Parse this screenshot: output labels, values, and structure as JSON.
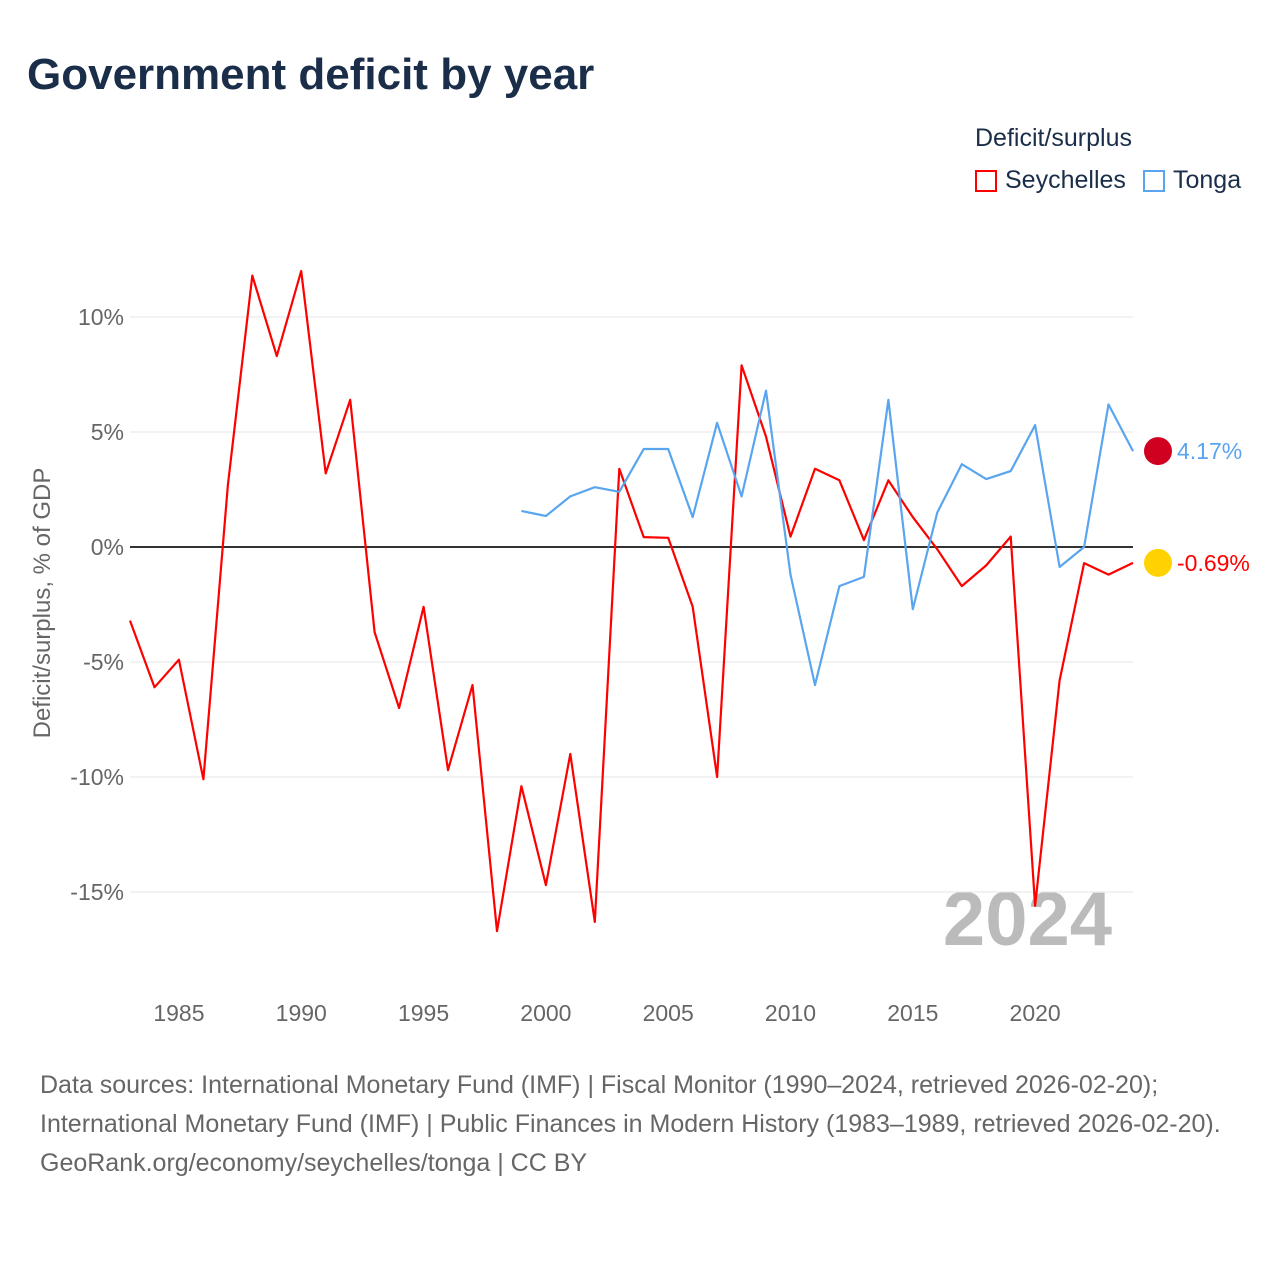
{
  "title": "Government deficit by year",
  "legend": {
    "title": "Deficit/surplus",
    "items": [
      {
        "name": "Seychelles",
        "color": "#ff0000"
      },
      {
        "name": "Tonga",
        "color": "#5aa5ef"
      }
    ]
  },
  "watermark_year": "2024",
  "source_lines": [
    "Data sources: International Monetary Fund (IMF) | Fiscal Monitor (1990–2024, retrieved 2026-02-20); International Monetary Fund (IMF) | Public Finances in Modern History (1983–1989, retrieved 2026-02-20).",
    "GeoRank.org/economy/seychelles/tonga | CC BY"
  ],
  "chart_data": {
    "type": "line",
    "title": "Government deficit by year",
    "ylabel": "Deficit/surplus, % of GDP",
    "xlabel": "",
    "xlim": [
      1983,
      2024
    ],
    "ylim": [
      -18,
      14
    ],
    "xticks": [
      1985,
      1990,
      1995,
      2000,
      2005,
      2010,
      2015,
      2020
    ],
    "xtick_labels": [
      "1985",
      "1990",
      "1995",
      "2000",
      "2005",
      "2010",
      "2015",
      "2020"
    ],
    "yticks": [
      -15,
      -10,
      -5,
      0,
      5,
      10
    ],
    "ytick_labels": [
      "-15%",
      "-10%",
      "-5%",
      "0%",
      "5%",
      "10%"
    ],
    "grid": true,
    "legend_position": "top-right",
    "series": [
      {
        "name": "Seychelles",
        "color": "#ff0000",
        "end_label": "-0.69%",
        "x_start": 1983,
        "values": [
          -3.2,
          -6.1,
          -4.9,
          -10.1,
          2.7,
          11.8,
          8.3,
          12.0,
          3.2,
          6.4,
          -3.7,
          -7.0,
          -2.6,
          -9.7,
          -6.0,
          -16.7,
          -10.4,
          -14.7,
          -9.0,
          -16.3,
          3.4,
          0.43,
          0.4,
          -2.6,
          -10.0,
          7.9,
          4.8,
          0.45,
          3.4,
          2.9,
          0.3,
          2.9,
          1.3,
          -0.1,
          -1.7,
          -0.8,
          0.45,
          -15.6,
          -5.8,
          -0.7,
          -1.2,
          -0.69
        ]
      },
      {
        "name": "Tonga",
        "color": "#5aa5ef",
        "end_label": "4.17%",
        "x_start": 1999,
        "values": [
          1.57,
          1.35,
          2.2,
          2.6,
          2.4,
          4.26,
          4.26,
          1.3,
          5.4,
          2.2,
          6.8,
          -1.2,
          -6.0,
          -1.7,
          -1.3,
          6.4,
          -2.7,
          1.5,
          3.6,
          2.95,
          3.3,
          5.3,
          -0.87,
          0,
          6.2,
          4.17
        ]
      }
    ]
  }
}
